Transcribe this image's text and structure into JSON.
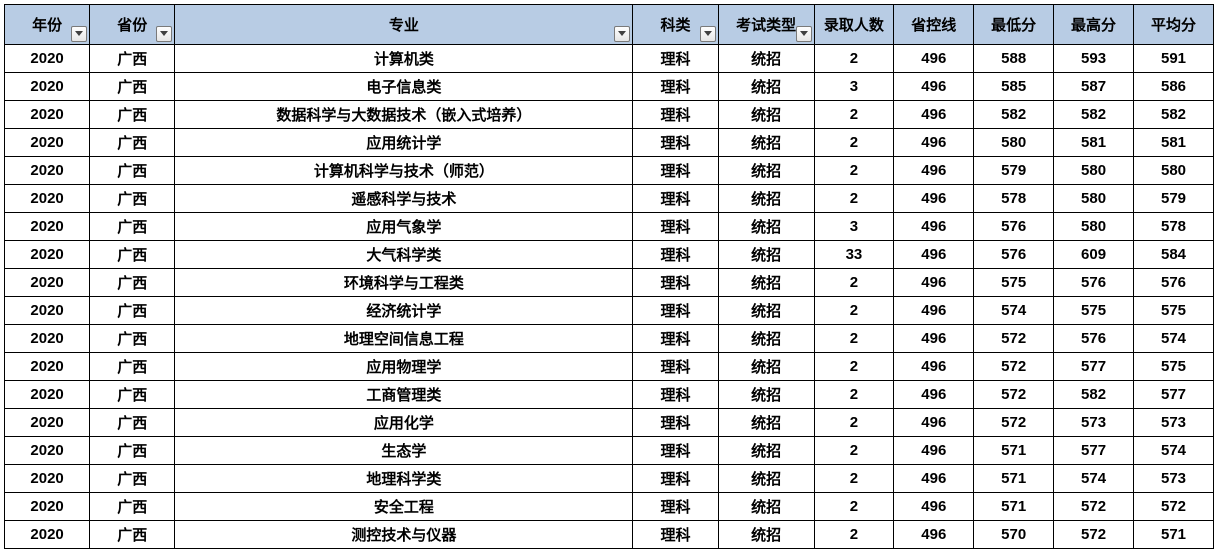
{
  "header_bg": "#b8cce4",
  "border_color": "#000000",
  "columns": [
    {
      "key": "year",
      "label": "年份",
      "filter": true,
      "class": "col-year"
    },
    {
      "key": "prov",
      "label": "省份",
      "filter": true,
      "class": "col-prov"
    },
    {
      "key": "major",
      "label": "专业",
      "filter": true,
      "class": "col-major"
    },
    {
      "key": "subj",
      "label": "科类",
      "filter": true,
      "class": "col-subj"
    },
    {
      "key": "exam",
      "label": "考试类型",
      "filter": true,
      "class": "col-exam"
    },
    {
      "key": "count",
      "label": "录取人数",
      "filter": false,
      "class": "col-count"
    },
    {
      "key": "line",
      "label": "省控线",
      "filter": false,
      "class": "col-line"
    },
    {
      "key": "min",
      "label": "最低分",
      "filter": false,
      "class": "col-min"
    },
    {
      "key": "max",
      "label": "最高分",
      "filter": false,
      "class": "col-max"
    },
    {
      "key": "avg",
      "label": "平均分",
      "filter": false,
      "class": "col-avg"
    }
  ],
  "rows": [
    {
      "year": "2020",
      "prov": "广西",
      "major": "计算机类",
      "subj": "理科",
      "exam": "统招",
      "count": "2",
      "line": "496",
      "min": "588",
      "max": "593",
      "avg": "591"
    },
    {
      "year": "2020",
      "prov": "广西",
      "major": "电子信息类",
      "subj": "理科",
      "exam": "统招",
      "count": "3",
      "line": "496",
      "min": "585",
      "max": "587",
      "avg": "586"
    },
    {
      "year": "2020",
      "prov": "广西",
      "major": "数据科学与大数据技术（嵌入式培养）",
      "subj": "理科",
      "exam": "统招",
      "count": "2",
      "line": "496",
      "min": "582",
      "max": "582",
      "avg": "582"
    },
    {
      "year": "2020",
      "prov": "广西",
      "major": "应用统计学",
      "subj": "理科",
      "exam": "统招",
      "count": "2",
      "line": "496",
      "min": "580",
      "max": "581",
      "avg": "581"
    },
    {
      "year": "2020",
      "prov": "广西",
      "major": "计算机科学与技术（师范）",
      "subj": "理科",
      "exam": "统招",
      "count": "2",
      "line": "496",
      "min": "579",
      "max": "580",
      "avg": "580"
    },
    {
      "year": "2020",
      "prov": "广西",
      "major": "遥感科学与技术",
      "subj": "理科",
      "exam": "统招",
      "count": "2",
      "line": "496",
      "min": "578",
      "max": "580",
      "avg": "579"
    },
    {
      "year": "2020",
      "prov": "广西",
      "major": "应用气象学",
      "subj": "理科",
      "exam": "统招",
      "count": "3",
      "line": "496",
      "min": "576",
      "max": "580",
      "avg": "578"
    },
    {
      "year": "2020",
      "prov": "广西",
      "major": "大气科学类",
      "subj": "理科",
      "exam": "统招",
      "count": "33",
      "line": "496",
      "min": "576",
      "max": "609",
      "avg": "584"
    },
    {
      "year": "2020",
      "prov": "广西",
      "major": "环境科学与工程类",
      "subj": "理科",
      "exam": "统招",
      "count": "2",
      "line": "496",
      "min": "575",
      "max": "576",
      "avg": "576"
    },
    {
      "year": "2020",
      "prov": "广西",
      "major": "经济统计学",
      "subj": "理科",
      "exam": "统招",
      "count": "2",
      "line": "496",
      "min": "574",
      "max": "575",
      "avg": "575"
    },
    {
      "year": "2020",
      "prov": "广西",
      "major": "地理空间信息工程",
      "subj": "理科",
      "exam": "统招",
      "count": "2",
      "line": "496",
      "min": "572",
      "max": "576",
      "avg": "574"
    },
    {
      "year": "2020",
      "prov": "广西",
      "major": "应用物理学",
      "subj": "理科",
      "exam": "统招",
      "count": "2",
      "line": "496",
      "min": "572",
      "max": "577",
      "avg": "575"
    },
    {
      "year": "2020",
      "prov": "广西",
      "major": "工商管理类",
      "subj": "理科",
      "exam": "统招",
      "count": "2",
      "line": "496",
      "min": "572",
      "max": "582",
      "avg": "577"
    },
    {
      "year": "2020",
      "prov": "广西",
      "major": "应用化学",
      "subj": "理科",
      "exam": "统招",
      "count": "2",
      "line": "496",
      "min": "572",
      "max": "573",
      "avg": "573"
    },
    {
      "year": "2020",
      "prov": "广西",
      "major": "生态学",
      "subj": "理科",
      "exam": "统招",
      "count": "2",
      "line": "496",
      "min": "571",
      "max": "577",
      "avg": "574"
    },
    {
      "year": "2020",
      "prov": "广西",
      "major": "地理科学类",
      "subj": "理科",
      "exam": "统招",
      "count": "2",
      "line": "496",
      "min": "571",
      "max": "574",
      "avg": "573"
    },
    {
      "year": "2020",
      "prov": "广西",
      "major": "安全工程",
      "subj": "理科",
      "exam": "统招",
      "count": "2",
      "line": "496",
      "min": "571",
      "max": "572",
      "avg": "572"
    },
    {
      "year": "2020",
      "prov": "广西",
      "major": "测控技术与仪器",
      "subj": "理科",
      "exam": "统招",
      "count": "2",
      "line": "496",
      "min": "570",
      "max": "572",
      "avg": "571"
    }
  ]
}
